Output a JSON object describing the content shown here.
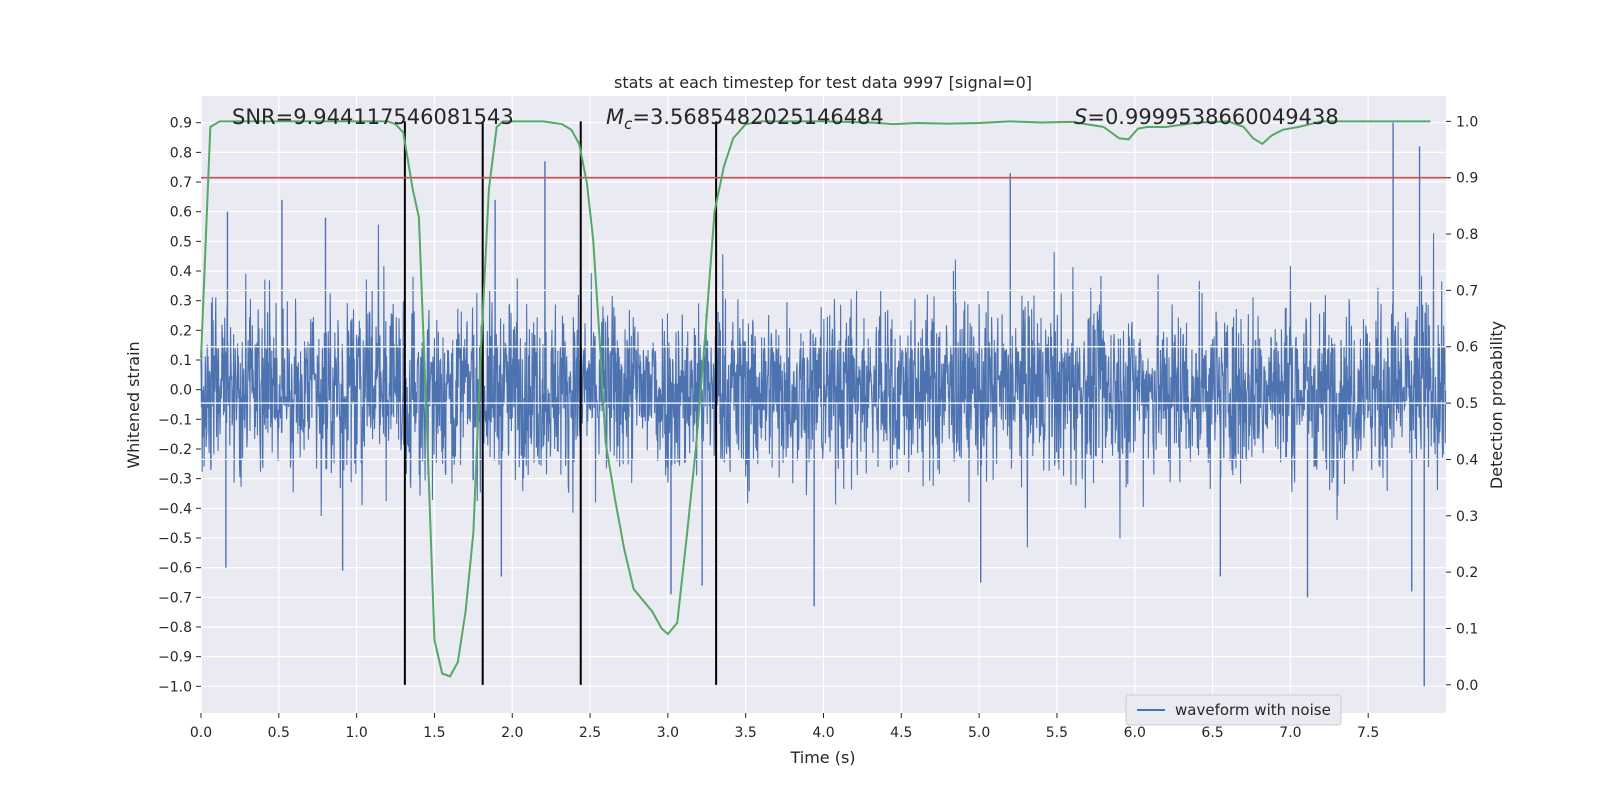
{
  "chart_data": {
    "type": "line",
    "title": "stats at each timestep for test data 9997 [signal=0]",
    "xlabel": "Time (s)",
    "ylabel_left": "Whitened strain",
    "ylabel_right": "Detection probability",
    "xlim": [
      0.0,
      8.0
    ],
    "ylim_left": [
      -1.09,
      0.99
    ],
    "ylim_right": [
      -0.05,
      1.045
    ],
    "x_ticks": [
      "0.0",
      "0.5",
      "1.0",
      "1.5",
      "2.0",
      "2.5",
      "3.0",
      "3.5",
      "4.0",
      "4.5",
      "5.0",
      "5.5",
      "6.0",
      "6.5",
      "7.0",
      "7.5"
    ],
    "y_ticks_left": [
      "0.9",
      "0.8",
      "0.7",
      "0.6",
      "0.5",
      "0.4",
      "0.3",
      "0.2",
      "0.1",
      "0.0",
      "−0.1",
      "−0.2",
      "−0.3",
      "−0.4",
      "−0.5",
      "−0.6",
      "−0.7",
      "−0.8",
      "−0.9",
      "−1.0"
    ],
    "y_ticks_right": [
      "1.0",
      "0.9",
      "0.8",
      "0.7",
      "0.6",
      "0.5",
      "0.4",
      "0.3",
      "0.2",
      "0.1",
      "0.0"
    ],
    "annotations": {
      "snr": "SNR=9.944117546081543",
      "mc_symbol": "M",
      "mc_sub": "c",
      "mc_value": "=3.5685482025146484",
      "s_symbol": "S",
      "s_value": "=0.9999538660049438"
    },
    "legend": [
      "waveform with noise"
    ],
    "threshold": 0.9,
    "vertical_lines": [
      1.31,
      1.81,
      2.44,
      3.31
    ],
    "series": [
      {
        "name": "waveform with noise",
        "color": "#4c72b0",
        "axis": "left",
        "envelope": {
          "duration": 8.0,
          "typical_amplitude": 0.32,
          "peak_amplitude": 0.95,
          "outliers": [
            {
              "t": 0.16,
              "v": -0.6
            },
            {
              "t": 0.17,
              "v": 0.6
            },
            {
              "t": 0.52,
              "v": 0.64
            },
            {
              "t": 0.91,
              "v": -0.61
            },
            {
              "t": 0.8,
              "v": 0.58
            },
            {
              "t": 1.89,
              "v": 0.64
            },
            {
              "t": 1.93,
              "v": -0.63
            },
            {
              "t": 2.21,
              "v": 0.77
            },
            {
              "t": 3.02,
              "v": -0.69
            },
            {
              "t": 3.22,
              "v": -0.66
            },
            {
              "t": 3.94,
              "v": -0.73
            },
            {
              "t": 5.01,
              "v": -0.65
            },
            {
              "t": 5.2,
              "v": 0.73
            },
            {
              "t": 6.55,
              "v": -0.63
            },
            {
              "t": 7.11,
              "v": -0.7
            },
            {
              "t": 7.66,
              "v": 0.9
            },
            {
              "t": 7.78,
              "v": -0.68
            },
            {
              "t": 7.83,
              "v": 0.82
            },
            {
              "t": 7.86,
              "v": -1.0
            }
          ]
        }
      },
      {
        "name": "detection probability",
        "color": "#55a868",
        "axis": "right",
        "x": [
          0.0,
          0.06,
          0.12,
          0.2,
          0.4,
          0.8,
          1.0,
          1.2,
          1.25,
          1.3,
          1.36,
          1.4,
          1.45,
          1.5,
          1.55,
          1.6,
          1.65,
          1.7,
          1.75,
          1.8,
          1.85,
          1.9,
          1.94,
          2.0,
          2.2,
          2.32,
          2.38,
          2.43,
          2.48,
          2.52,
          2.56,
          2.6,
          2.66,
          2.72,
          2.78,
          2.84,
          2.9,
          2.96,
          3.0,
          3.06,
          3.12,
          3.18,
          3.24,
          3.3,
          3.36,
          3.42,
          3.5,
          3.6,
          4.0,
          4.3,
          4.45,
          4.6,
          4.8,
          5.0,
          5.2,
          5.4,
          5.6,
          5.8,
          5.9,
          5.96,
          6.02,
          6.08,
          6.2,
          6.4,
          6.6,
          6.7,
          6.76,
          6.82,
          6.88,
          6.95,
          7.05,
          7.2,
          7.4,
          7.9
        ],
        "y": [
          0.58,
          0.99,
          1.0,
          1.0,
          1.0,
          1.0,
          1.0,
          1.0,
          0.995,
          0.98,
          0.88,
          0.83,
          0.47,
          0.08,
          0.02,
          0.015,
          0.04,
          0.13,
          0.27,
          0.6,
          0.88,
          0.99,
          1.0,
          1.0,
          1.0,
          0.995,
          0.985,
          0.96,
          0.89,
          0.79,
          0.62,
          0.43,
          0.33,
          0.24,
          0.17,
          0.15,
          0.13,
          0.1,
          0.09,
          0.11,
          0.26,
          0.42,
          0.62,
          0.84,
          0.92,
          0.97,
          0.995,
          1.0,
          1.0,
          0.998,
          0.995,
          0.997,
          0.996,
          0.997,
          1.0,
          0.998,
          0.999,
          0.99,
          0.97,
          0.968,
          0.987,
          0.99,
          0.99,
          0.998,
          1.0,
          0.99,
          0.97,
          0.96,
          0.975,
          0.985,
          0.99,
          1.0,
          1.0,
          1.0
        ]
      }
    ]
  }
}
